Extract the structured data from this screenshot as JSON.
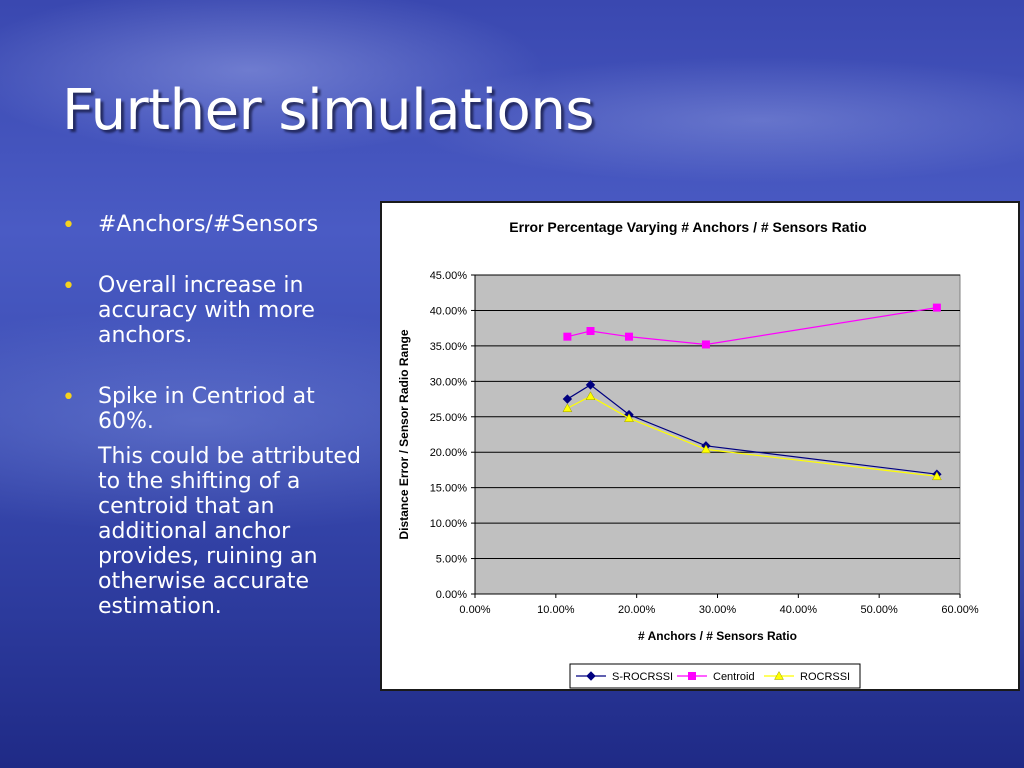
{
  "slide": {
    "title": "Further simulations",
    "bullets": [
      {
        "text": "#Anchors/#Sensors"
      },
      {
        "text": "Overall increase in accuracy with more anchors."
      },
      {
        "text": "Spike in Centriod at 60%.",
        "sub": "This could be attributed to the shifting of a centroid that an additional anchor provides, ruining an otherwise accurate estimation."
      }
    ]
  },
  "colors": {
    "accent_bullet": "#f5d21e",
    "plot_bg": "#c0c0c0",
    "s_rocrssi": "#000080",
    "centroid": "#ff00ff",
    "rocrssi": "#ffff00"
  },
  "chart_data": {
    "type": "line",
    "title": "Error Percentage Varying # Anchors /  # Sensors Ratio",
    "xlabel": "# Anchors / # Sensors Ratio",
    "ylabel": "Distance Error / Sensor Radio Range",
    "xlim": [
      0,
      0.6
    ],
    "ylim": [
      0,
      0.45
    ],
    "x_ticks": [
      "0.00%",
      "10.00%",
      "20.00%",
      "30.00%",
      "40.00%",
      "50.00%",
      "60.00%"
    ],
    "y_ticks": [
      "0.00%",
      "5.00%",
      "10.00%",
      "15.00%",
      "20.00%",
      "25.00%",
      "30.00%",
      "35.00%",
      "40.00%",
      "45.00%"
    ],
    "grid": "horizontal",
    "legend_position": "bottom",
    "series": [
      {
        "name": "S-ROCRSSI",
        "marker": "diamond",
        "color": "#000080",
        "x": [
          0.1143,
          0.1429,
          0.1905,
          0.2857,
          0.5714
        ],
        "y": [
          0.275,
          0.295,
          0.253,
          0.209,
          0.169
        ]
      },
      {
        "name": "Centroid",
        "marker": "square",
        "color": "#ff00ff",
        "x": [
          0.1143,
          0.1429,
          0.1905,
          0.2857,
          0.5714
        ],
        "y": [
          0.363,
          0.371,
          0.363,
          0.352,
          0.404
        ]
      },
      {
        "name": "ROCRSSI",
        "marker": "triangle",
        "color": "#ffff00",
        "x": [
          0.1143,
          0.1429,
          0.1905,
          0.2857,
          0.5714
        ],
        "y": [
          0.262,
          0.279,
          0.248,
          0.204,
          0.166
        ]
      }
    ]
  }
}
